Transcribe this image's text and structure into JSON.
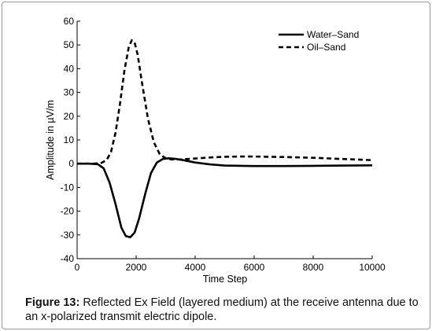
{
  "chart_data": {
    "type": "line",
    "xlabel": "Time Step",
    "ylabel": "Amplitude in µV/m",
    "xlim": [
      0,
      10000
    ],
    "ylim": [
      -40,
      60
    ],
    "xticks": [
      "0",
      "2000",
      "4000",
      "6000",
      "8000",
      "10000"
    ],
    "yticks": [
      "-40",
      "-30",
      "-20",
      "-10",
      "0",
      "10",
      "20",
      "30",
      "40",
      "50",
      "60"
    ],
    "grid": false,
    "legend_position": "top-right",
    "series": [
      {
        "name": "Water–Sand",
        "style": "solid",
        "x": [
          0,
          400,
          700,
          900,
          1100,
          1300,
          1500,
          1650,
          1800,
          1950,
          2100,
          2300,
          2500,
          2700,
          2900,
          3100,
          3300,
          3600,
          4000,
          4500,
          5000,
          6000,
          7000,
          8000,
          9000,
          10000
        ],
        "y": [
          0,
          0,
          -0.2,
          -2,
          -8,
          -17,
          -27,
          -30.5,
          -31,
          -29,
          -23,
          -13,
          -4,
          0.5,
          2,
          2.3,
          2.1,
          1.5,
          0.5,
          -0.3,
          -0.8,
          -1,
          -1,
          -0.9,
          -0.8,
          -0.7
        ]
      },
      {
        "name": "Oil–Sand",
        "style": "dashed",
        "x": [
          0,
          500,
          800,
          1000,
          1150,
          1300,
          1450,
          1600,
          1750,
          1850,
          1950,
          2050,
          2200,
          2400,
          2600,
          2800,
          3000,
          3200,
          3500,
          4000,
          4500,
          5000,
          5500,
          6000,
          7000,
          8000,
          9000,
          10000
        ],
        "y": [
          0,
          0,
          0.2,
          1.5,
          5,
          13,
          25,
          39,
          49,
          52,
          51,
          46,
          34,
          19,
          9,
          4,
          2.3,
          1.8,
          1.8,
          2.2,
          2.6,
          2.9,
          3,
          3,
          2.8,
          2.5,
          2,
          1.5
        ]
      }
    ]
  },
  "caption": {
    "label": "Figure 13:",
    "text": " Reflected Ex Field (layered medium) at the receive antenna due to an x-polarized transmit electric dipole."
  },
  "colors": {
    "line": "#000000",
    "axis": "#000000",
    "frame": "#9a9a9a"
  }
}
